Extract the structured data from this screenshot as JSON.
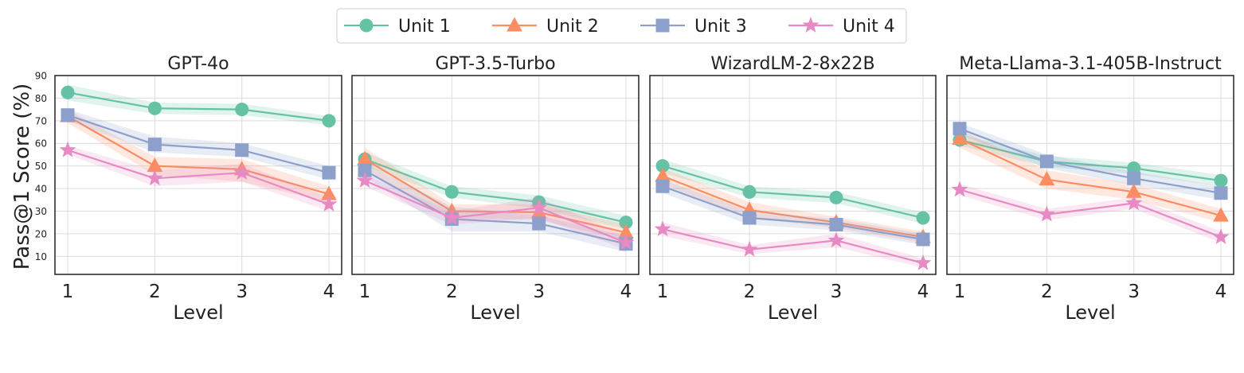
{
  "legend": {
    "placement": "top-center",
    "entries": [
      {
        "label": "Unit 1",
        "color": "#66c2a5",
        "marker": "circle"
      },
      {
        "label": "Unit 2",
        "color": "#fc8d62",
        "marker": "triangle"
      },
      {
        "label": "Unit 3",
        "color": "#8da0cb",
        "marker": "square"
      },
      {
        "label": "Unit 4",
        "color": "#e78ac3",
        "marker": "star"
      }
    ]
  },
  "shared_ylabel": "Pass@1 Score (%)",
  "chart_data": [
    {
      "type": "line",
      "title": "GPT-4o",
      "xlabel": "Level",
      "ylabel": "Pass@1 Score (%)",
      "x": [
        1,
        2,
        3,
        4
      ],
      "xticks": [
        "1",
        "2",
        "3",
        "4"
      ],
      "yticks": [
        "10",
        "20",
        "30",
        "40",
        "50",
        "60",
        "70",
        "80",
        "90"
      ],
      "ylim": [
        2,
        90
      ],
      "grid": true,
      "series": [
        {
          "name": "Unit 1",
          "values": [
            82.5,
            75.5,
            75,
            70
          ],
          "band": [
            [
              79,
              86
            ],
            [
              73,
              78
            ],
            [
              72.5,
              77.5
            ],
            [
              68,
              72
            ]
          ]
        },
        {
          "name": "Unit 2",
          "values": [
            72,
            50,
            48.5,
            37.5
          ],
          "band": [
            [
              69,
              75
            ],
            [
              46,
              54
            ],
            [
              43,
              53
            ],
            [
              34,
              41
            ]
          ]
        },
        {
          "name": "Unit 3",
          "values": [
            72.5,
            59.5,
            57,
            47
          ],
          "band": [
            [
              70,
              75
            ],
            [
              56,
              63
            ],
            [
              54,
              60
            ],
            [
              44,
              50
            ]
          ]
        },
        {
          "name": "Unit 4",
          "values": [
            57,
            44.5,
            47,
            33
          ],
          "band": [
            [
              55,
              59
            ],
            [
              41,
              48
            ],
            [
              43,
              51
            ],
            [
              30,
              36
            ]
          ]
        }
      ]
    },
    {
      "type": "line",
      "title": "GPT-3.5-Turbo",
      "xlabel": "Level",
      "x": [
        1,
        2,
        3,
        4
      ],
      "xticks": [
        "1",
        "2",
        "3",
        "4"
      ],
      "ylim": [
        2,
        90
      ],
      "grid": true,
      "series": [
        {
          "name": "Unit 1",
          "values": [
            53,
            38.5,
            34,
            25
          ],
          "band": [
            [
              50,
              56
            ],
            [
              36,
              41
            ],
            [
              31,
              37
            ],
            [
              22,
              28
            ]
          ]
        },
        {
          "name": "Unit 2",
          "values": [
            53,
            30,
            29.5,
            20.5
          ],
          "band": [
            [
              48,
              58
            ],
            [
              27,
              33
            ],
            [
              26,
              33
            ],
            [
              17,
              24
            ]
          ]
        },
        {
          "name": "Unit 3",
          "values": [
            48,
            26.5,
            24.5,
            15.5
          ],
          "band": [
            [
              45,
              51
            ],
            [
              21,
              32
            ],
            [
              21,
              28
            ],
            [
              12,
              19
            ]
          ]
        },
        {
          "name": "Unit 4",
          "values": [
            43.5,
            27,
            31.5,
            16
          ],
          "band": [
            [
              41,
              46
            ],
            [
              24,
              30
            ],
            [
              27,
              36
            ],
            [
              13,
              19
            ]
          ]
        }
      ]
    },
    {
      "type": "line",
      "title": "WizardLM-2-8x22B",
      "xlabel": "Level",
      "x": [
        1,
        2,
        3,
        4
      ],
      "xticks": [
        "1",
        "2",
        "3",
        "4"
      ],
      "ylim": [
        2,
        90
      ],
      "grid": true,
      "series": [
        {
          "name": "Unit 1",
          "values": [
            50,
            38.5,
            36,
            27
          ],
          "band": [
            [
              47,
              53
            ],
            [
              36,
              41
            ],
            [
              33.5,
              38.5
            ],
            [
              24.5,
              29.5
            ]
          ]
        },
        {
          "name": "Unit 2",
          "values": [
            45.5,
            30.5,
            25,
            18.5
          ],
          "band": [
            [
              42,
              49
            ],
            [
              27,
              34
            ],
            [
              22.5,
              27.5
            ],
            [
              16,
              21
            ]
          ]
        },
        {
          "name": "Unit 3",
          "values": [
            41,
            27,
            24,
            17.5
          ],
          "band": [
            [
              38,
              44
            ],
            [
              24,
              30
            ],
            [
              21.5,
              26.5
            ],
            [
              15,
              20
            ]
          ]
        },
        {
          "name": "Unit 4",
          "values": [
            22,
            13,
            17,
            7
          ],
          "band": [
            [
              19,
              25
            ],
            [
              11,
              15
            ],
            [
              14,
              20
            ],
            [
              5,
              9
            ]
          ]
        }
      ]
    },
    {
      "type": "line",
      "title": "Meta-Llama-3.1-405B-Instruct",
      "xlabel": "Level",
      "x": [
        1,
        2,
        3,
        4
      ],
      "xticks": [
        "1",
        "2",
        "3",
        "4"
      ],
      "ylim": [
        2,
        90
      ],
      "grid": true,
      "series": [
        {
          "name": "Unit 1",
          "values": [
            61.5,
            52,
            49,
            43.5
          ],
          "band": [
            [
              59,
              64
            ],
            [
              49.5,
              54.5
            ],
            [
              46.5,
              51.5
            ],
            [
              41,
              46
            ]
          ]
        },
        {
          "name": "Unit 2",
          "values": [
            62,
            44,
            38.5,
            28
          ],
          "band": [
            [
              58,
              66
            ],
            [
              40,
              48
            ],
            [
              35,
              42
            ],
            [
              25,
              31
            ]
          ]
        },
        {
          "name": "Unit 3",
          "values": [
            66.5,
            52,
            44.5,
            38
          ],
          "band": [
            [
              64,
              69
            ],
            [
              49,
              55
            ],
            [
              41.5,
              47.5
            ],
            [
              35,
              41
            ]
          ]
        },
        {
          "name": "Unit 4",
          "values": [
            39.5,
            28.5,
            33.5,
            18.5
          ],
          "band": [
            [
              37,
              42
            ],
            [
              26,
              31
            ],
            [
              31,
              36
            ],
            [
              16,
              21
            ]
          ]
        }
      ]
    }
  ]
}
